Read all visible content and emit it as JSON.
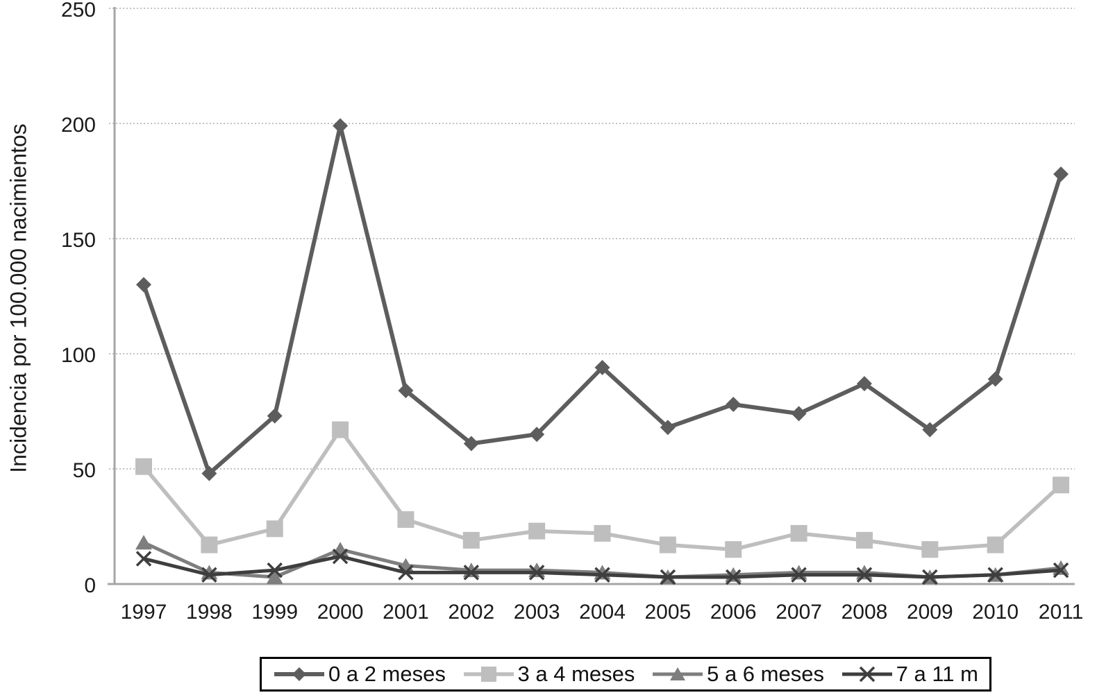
{
  "chart_data": {
    "type": "line",
    "title": "",
    "xlabel": "",
    "ylabel": "Incidencia por 100.000 nacimientos",
    "ylim": [
      0,
      250
    ],
    "yticks": [
      0,
      50,
      100,
      150,
      200,
      250
    ],
    "grid": "horizontal-dotted",
    "legend_position": "bottom",
    "categories": [
      "1997",
      "1998",
      "1999",
      "2000",
      "2001",
      "2002",
      "2003",
      "2004",
      "2005",
      "2006",
      "2007",
      "2008",
      "2009",
      "2010",
      "2011"
    ],
    "series": [
      {
        "name": "0 a 2 meses",
        "marker": "diamond",
        "color": "#5d5d5d",
        "values": [
          130,
          48,
          73,
          199,
          84,
          61,
          65,
          94,
          68,
          78,
          74,
          87,
          67,
          89,
          178
        ]
      },
      {
        "name": "3 a 4 meses",
        "marker": "square",
        "color": "#bebebe",
        "values": [
          51,
          17,
          24,
          67,
          28,
          19,
          23,
          22,
          17,
          15,
          22,
          19,
          15,
          17,
          43
        ]
      },
      {
        "name": "5 a 6 meses",
        "marker": "triangle",
        "color": "#7e7e7e",
        "values": [
          18,
          5,
          3,
          15,
          8,
          6,
          6,
          5,
          3,
          4,
          5,
          5,
          3,
          4,
          7
        ]
      },
      {
        "name": "7 a 11 m",
        "marker": "x",
        "color": "#3e3e3e",
        "values": [
          11,
          4,
          6,
          12,
          5,
          5,
          5,
          4,
          3,
          3,
          4,
          4,
          3,
          4,
          6
        ]
      }
    ],
    "colors": {
      "gridline": "#adadad",
      "axis": "#a5a5a5",
      "text": "#1a1a1a",
      "legend_border": "#000000"
    }
  }
}
